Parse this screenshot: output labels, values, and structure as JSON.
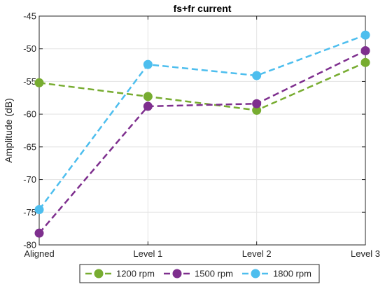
{
  "chart_data": {
    "type": "line",
    "title": "fs+fr current",
    "xlabel": "",
    "ylabel": "Amplitude (dB)",
    "categories": [
      "Aligned",
      "Level 1",
      "Level 2",
      "Level 3"
    ],
    "ylim": [
      -80,
      -45
    ],
    "yticks": [
      -80,
      -75,
      -70,
      -65,
      -60,
      -55,
      -50,
      -45
    ],
    "ytick_labels": [
      "-80",
      "-75",
      "-70",
      "-65",
      "-60",
      "-55",
      "-50",
      "-45"
    ],
    "grid": true,
    "legend_position": "bottom-outside",
    "series": [
      {
        "name": "1200 rpm",
        "color": "#77ac30",
        "values": [
          -55.2,
          -57.3,
          -59.4,
          -52.1
        ]
      },
      {
        "name": "1500 rpm",
        "color": "#7e2f8e",
        "values": [
          -78.2,
          -58.8,
          -58.4,
          -50.3
        ]
      },
      {
        "name": "1800 rpm",
        "color": "#4dbeee",
        "values": [
          -74.6,
          -52.4,
          -54.1,
          -47.9
        ]
      }
    ]
  }
}
